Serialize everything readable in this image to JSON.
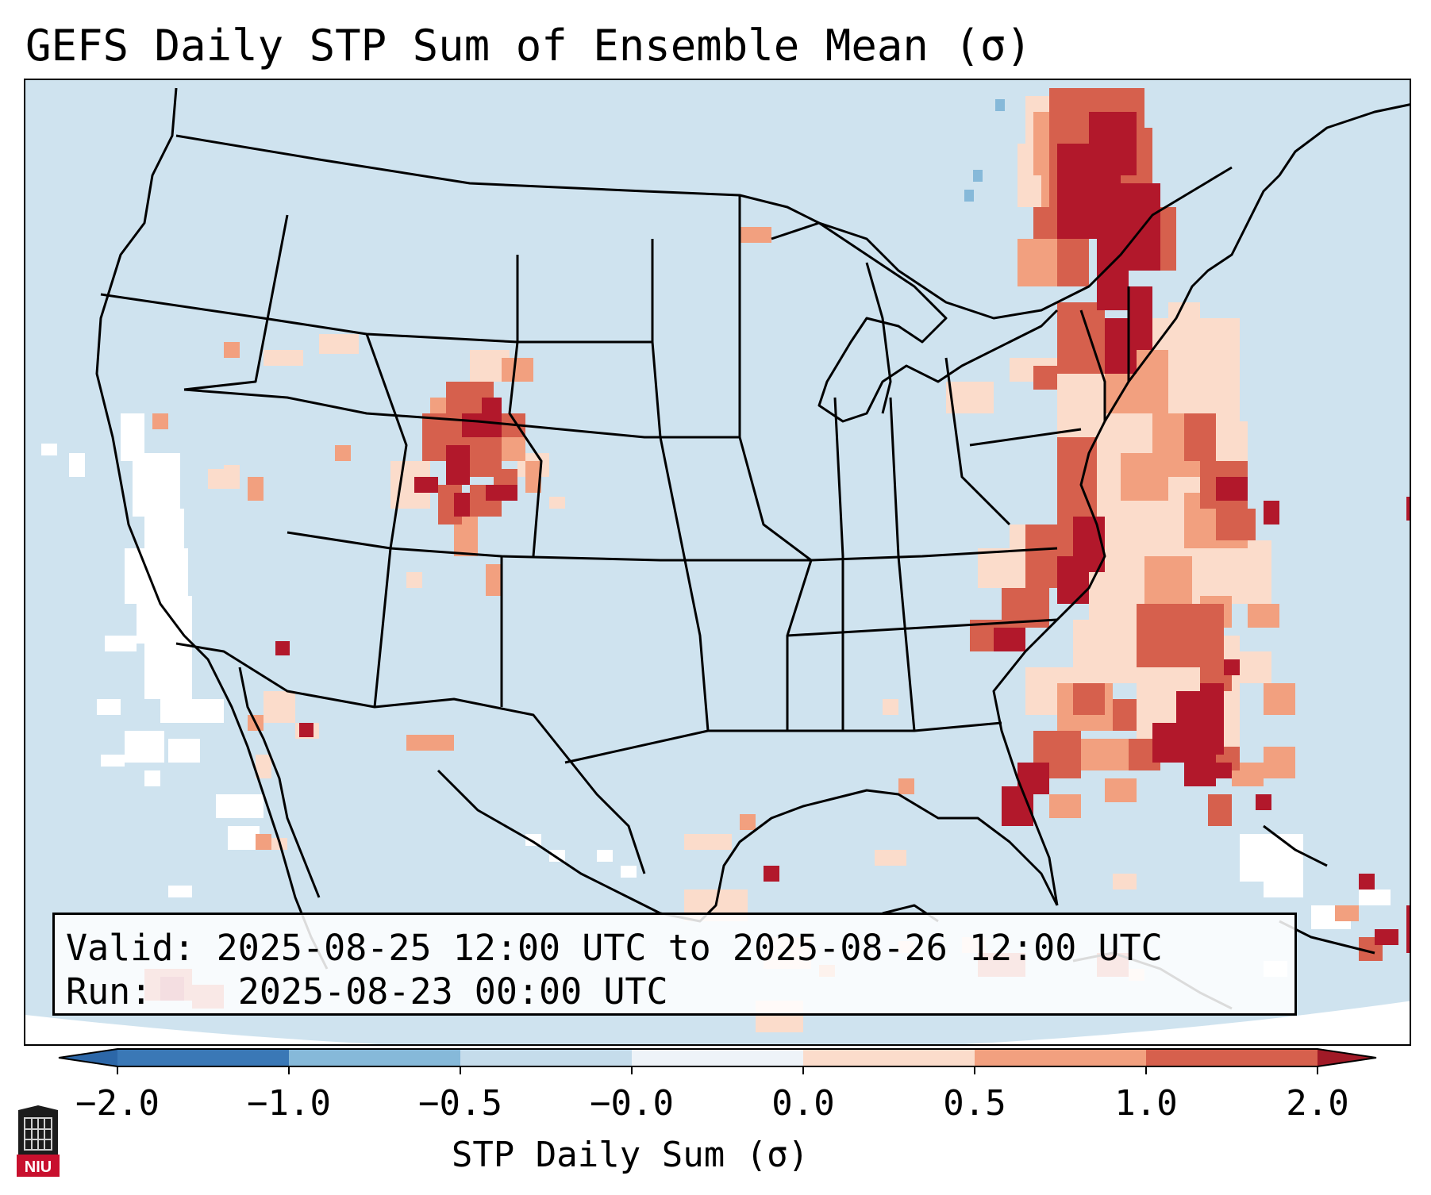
{
  "title": "GEFS Daily STP Sum of Ensemble Mean (σ)",
  "info": {
    "valid_label": "Valid:",
    "valid_value": "2025-08-25 12:00 UTC to 2025-08-26 12:00 UTC",
    "run_label": "Run:",
    "run_value": "2025-08-23 00:00 UTC"
  },
  "colorbar": {
    "label": "STP Daily Sum (σ)",
    "ticks": [
      "−2.0",
      "−1.0",
      "−0.5",
      "−0.0",
      "0.0",
      "0.5",
      "1.0",
      "2.0"
    ],
    "colors": [
      "#3a78b6",
      "#86b9d9",
      "#c5dceb",
      "#eef3f8",
      "#fbdccb",
      "#f2a07f",
      "#d6604d",
      "#b2182b"
    ],
    "under_color": "#2c67a8",
    "over_color": "#a11a27"
  },
  "map": {
    "ocean_fill": "#cfe3ef",
    "land_fill": "#cfe3ef",
    "hotspots_description_colors": {
      "neutral_negative": "#ffffff",
      "light": "#fbdccb",
      "medium": "#f2a07f",
      "strong": "#d6604d",
      "max": "#b2182b",
      "light_blue": "#86b9d9"
    }
  },
  "logo": {
    "text": "NIU"
  }
}
